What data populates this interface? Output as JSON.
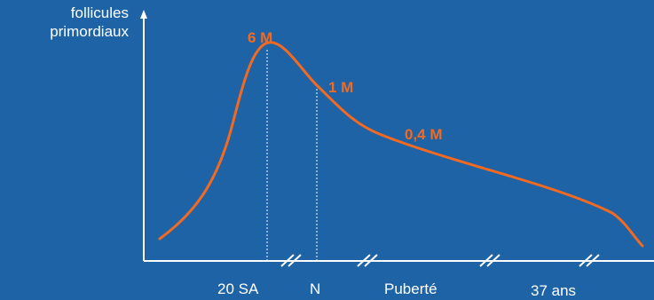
{
  "chart_data": {
    "type": "line",
    "ylabel": "follicules\nprimordiaux",
    "xlabel": "",
    "x_tick_labels": [
      "20 SA",
      "N",
      "Puberté",
      "37 ans"
    ],
    "annotations": [
      "6 M",
      "1 M",
      "0,4 M"
    ],
    "series": [
      {
        "values": [
          {
            "x": "start",
            "y": 0.05
          },
          {
            "x": "20 SA",
            "y": 6
          },
          {
            "x": "N",
            "y": 1
          },
          {
            "x": "after N",
            "y": 0.4
          },
          {
            "x": "37 ans",
            "y": 0.05
          }
        ]
      }
    ],
    "axis_breaks": 4
  },
  "colors": {
    "background": "#1e63a6",
    "curve": "#f26a21",
    "annotation": "#f26a21",
    "axis": "#ffffff"
  }
}
